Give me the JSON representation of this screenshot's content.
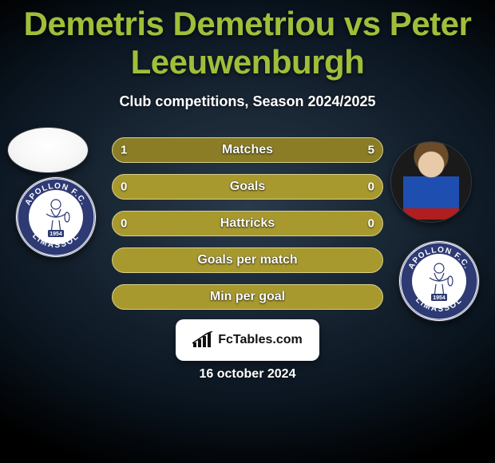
{
  "title_color": "#a0be3a",
  "text_color": "#ffffff",
  "background": {
    "center": "#2a3a4a",
    "edge": "#000000"
  },
  "title": "Demetris Demetriou vs Peter Leeuwenburgh",
  "subtitle": "Club competitions, Season 2024/2025",
  "bars": [
    {
      "label": "Matches",
      "left": "1",
      "right": "5",
      "left_pct": 18,
      "right_pct": 82
    },
    {
      "label": "Goals",
      "left": "0",
      "right": "0",
      "left_pct": 0,
      "right_pct": 0
    },
    {
      "label": "Hattricks",
      "left": "0",
      "right": "0",
      "left_pct": 0,
      "right_pct": 0
    },
    {
      "label": "Goals per match",
      "left": "",
      "right": "",
      "left_pct": 0,
      "right_pct": 0
    },
    {
      "label": "Min per goal",
      "left": "",
      "right": "",
      "left_pct": 0,
      "right_pct": 0
    }
  ],
  "bar_style": {
    "track_color": "#a8992f",
    "border_color": "#d8d087",
    "left_fill": "#8a7d26",
    "right_fill": "#8a7d26",
    "height": 32,
    "radius": 16,
    "gap": 14
  },
  "club_badge": {
    "outer": "#2d3a74",
    "ring": "#ffffff",
    "inner": "#ffffff",
    "top_text": "APOLLON F.C.",
    "bottom_text": "LIMASSOL",
    "year": "1954"
  },
  "brand": "FcTables.com",
  "date": "16 october 2024"
}
